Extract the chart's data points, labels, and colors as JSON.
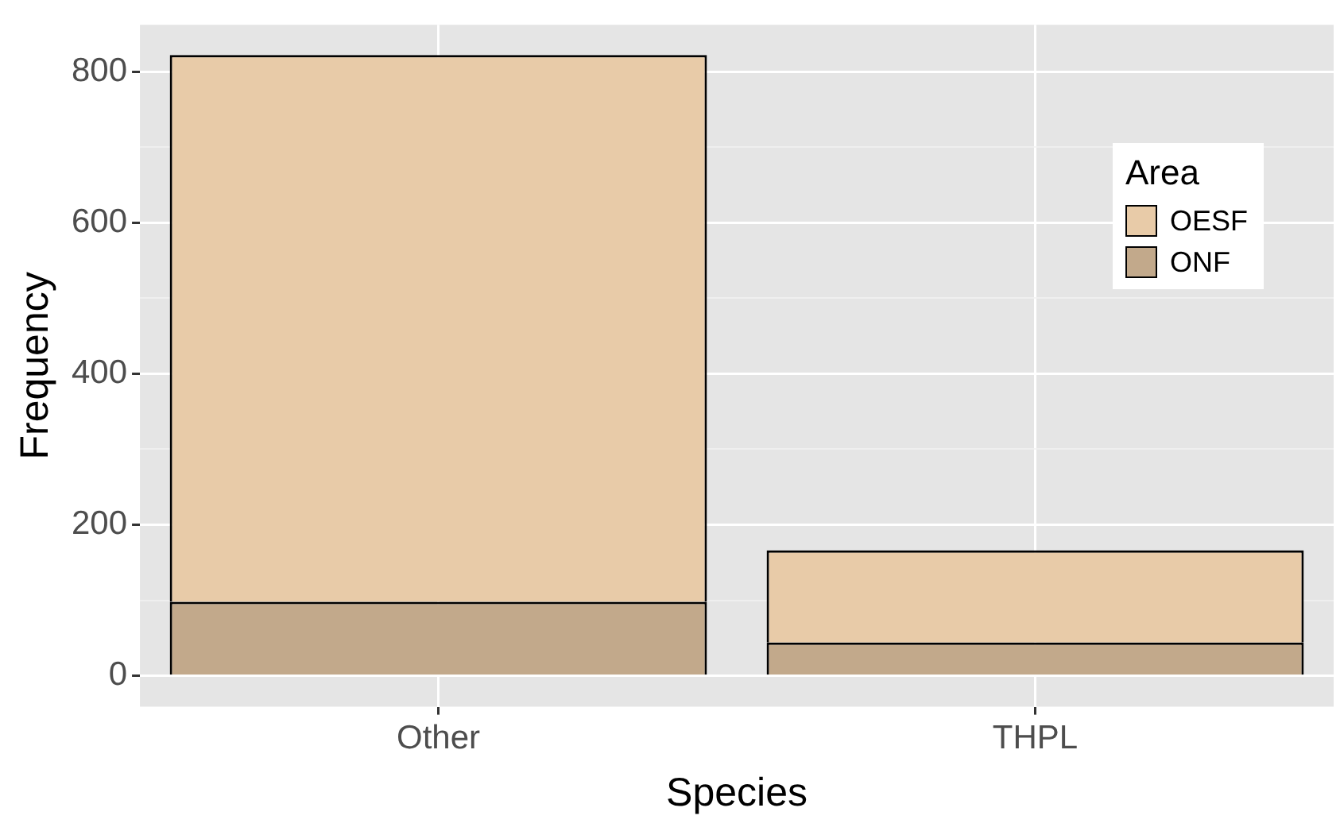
{
  "chart_data": {
    "type": "bar",
    "stacked": true,
    "xlabel": "Species",
    "ylabel": "Frequency",
    "legend_title": "Area",
    "legend": "top right",
    "grid": true,
    "categories": [
      "Other",
      "THPL"
    ],
    "series": [
      {
        "name": "ONF",
        "color": "#c2a98b",
        "values": [
          98,
          44
        ]
      },
      {
        "name": "OESF",
        "color": "#e8cba8",
        "values": [
          724,
          122
        ]
      }
    ],
    "ylim": [
      -41,
      862
    ],
    "yticks": [
      0,
      {
        "value": 100,
        "label": null
      },
      200,
      {
        "value": 300,
        "label": null
      },
      400,
      {
        "value": 500,
        "label": null
      },
      600,
      {
        "value": 700,
        "label": null
      },
      800
    ]
  }
}
